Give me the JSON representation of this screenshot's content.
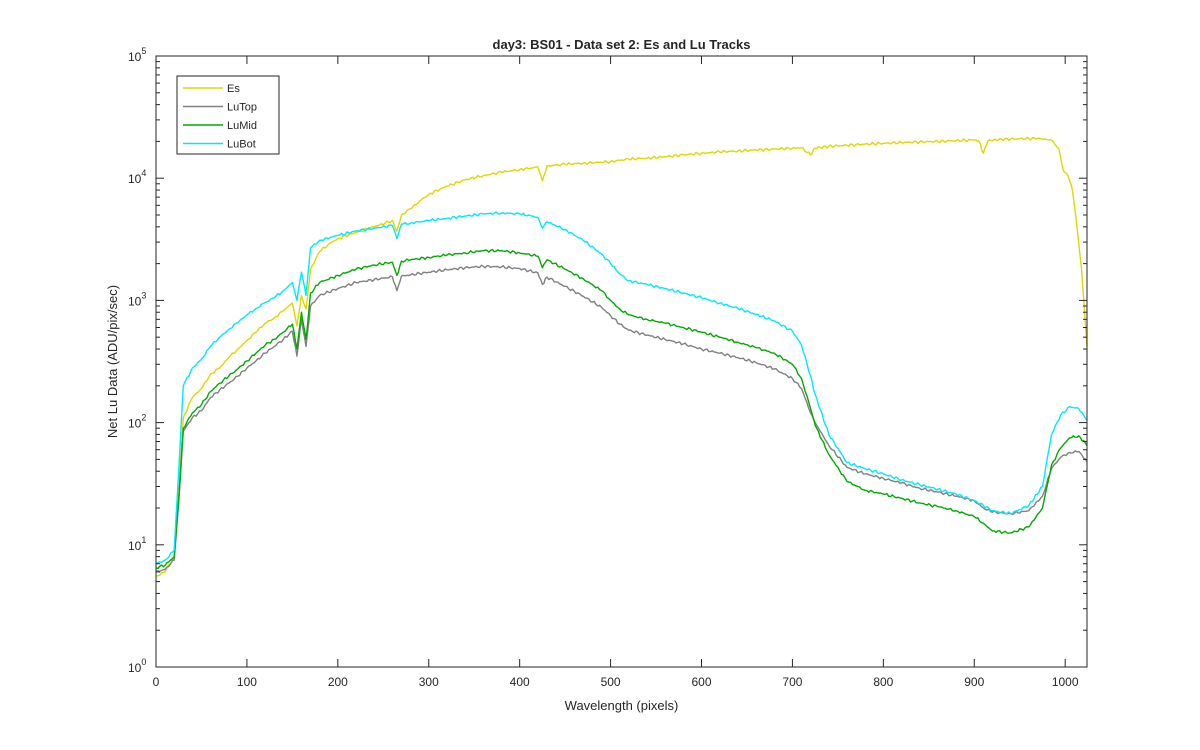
{
  "chart_data": {
    "type": "line",
    "title": "day3: BS01 - Data set 2: Es and Lu Tracks",
    "xlabel": "Wavelength (pixels)",
    "ylabel": "Net Lu Data (ADU/pix/sec)",
    "xlim": [
      0,
      1024
    ],
    "ylim": [
      1,
      100000
    ],
    "yscale": "log",
    "grid": false,
    "legend_position": "top-left",
    "x_ticks": [
      0,
      100,
      200,
      300,
      400,
      500,
      600,
      700,
      800,
      900,
      1000
    ],
    "y_ticks": [
      {
        "value": 1,
        "base": "10",
        "exp": "0"
      },
      {
        "value": 10,
        "base": "10",
        "exp": "1"
      },
      {
        "value": 100,
        "base": "10",
        "exp": "2"
      },
      {
        "value": 1000,
        "base": "10",
        "exp": "3"
      },
      {
        "value": 10000,
        "base": "10",
        "exp": "4"
      },
      {
        "value": 100000,
        "base": "10",
        "exp": "5"
      }
    ],
    "series": [
      {
        "name": "Es",
        "color": "#e0d600",
        "points": [
          [
            0,
            5.5
          ],
          [
            10,
            6
          ],
          [
            20,
            8
          ],
          [
            25,
            25
          ],
          [
            30,
            110
          ],
          [
            40,
            160
          ],
          [
            50,
            190
          ],
          [
            60,
            250
          ],
          [
            70,
            280
          ],
          [
            80,
            340
          ],
          [
            90,
            400
          ],
          [
            100,
            470
          ],
          [
            110,
            550
          ],
          [
            120,
            650
          ],
          [
            130,
            720
          ],
          [
            140,
            820
          ],
          [
            150,
            950
          ],
          [
            155,
            620
          ],
          [
            160,
            1100
          ],
          [
            165,
            850
          ],
          [
            170,
            1800
          ],
          [
            180,
            2500
          ],
          [
            190,
            2900
          ],
          [
            200,
            3200
          ],
          [
            220,
            3600
          ],
          [
            240,
            4000
          ],
          [
            260,
            4500
          ],
          [
            265,
            3700
          ],
          [
            270,
            5000
          ],
          [
            280,
            5600
          ],
          [
            290,
            6500
          ],
          [
            300,
            7400
          ],
          [
            320,
            8600
          ],
          [
            340,
            9700
          ],
          [
            360,
            10500
          ],
          [
            380,
            11200
          ],
          [
            400,
            11800
          ],
          [
            420,
            12300
          ],
          [
            425,
            9500
          ],
          [
            430,
            12600
          ],
          [
            450,
            13000
          ],
          [
            470,
            13300
          ],
          [
            490,
            13500
          ],
          [
            500,
            13700
          ],
          [
            510,
            14000
          ],
          [
            520,
            14300
          ],
          [
            540,
            14600
          ],
          [
            560,
            15000
          ],
          [
            580,
            15500
          ],
          [
            600,
            16000
          ],
          [
            620,
            16400
          ],
          [
            640,
            16700
          ],
          [
            660,
            17000
          ],
          [
            680,
            17300
          ],
          [
            700,
            17600
          ],
          [
            710,
            17800
          ],
          [
            720,
            15500
          ],
          [
            725,
            17600
          ],
          [
            740,
            18200
          ],
          [
            760,
            18600
          ],
          [
            780,
            19000
          ],
          [
            800,
            19300
          ],
          [
            820,
            19600
          ],
          [
            840,
            19800
          ],
          [
            860,
            20000
          ],
          [
            880,
            20300
          ],
          [
            900,
            20600
          ],
          [
            905,
            20200
          ],
          [
            910,
            16000
          ],
          [
            915,
            20300
          ],
          [
            930,
            20800
          ],
          [
            950,
            21000
          ],
          [
            970,
            21200
          ],
          [
            985,
            20500
          ],
          [
            993,
            17500
          ],
          [
            998,
            11500
          ],
          [
            1003,
            10500
          ],
          [
            1008,
            8000
          ],
          [
            1013,
            4000
          ],
          [
            1018,
            1800
          ],
          [
            1024,
            420
          ]
        ]
      },
      {
        "name": "LuTop",
        "color": "#808080",
        "points": [
          [
            0,
            6
          ],
          [
            10,
            6.3
          ],
          [
            20,
            7.5
          ],
          [
            25,
            22
          ],
          [
            30,
            85
          ],
          [
            40,
            110
          ],
          [
            50,
            125
          ],
          [
            60,
            160
          ],
          [
            70,
            185
          ],
          [
            80,
            210
          ],
          [
            90,
            240
          ],
          [
            100,
            280
          ],
          [
            110,
            320
          ],
          [
            120,
            370
          ],
          [
            130,
            420
          ],
          [
            140,
            480
          ],
          [
            150,
            560
          ],
          [
            155,
            350
          ],
          [
            160,
            700
          ],
          [
            165,
            420
          ],
          [
            170,
            900
          ],
          [
            180,
            1100
          ],
          [
            200,
            1250
          ],
          [
            220,
            1400
          ],
          [
            240,
            1480
          ],
          [
            260,
            1560
          ],
          [
            265,
            1200
          ],
          [
            270,
            1580
          ],
          [
            280,
            1620
          ],
          [
            300,
            1700
          ],
          [
            320,
            1780
          ],
          [
            340,
            1850
          ],
          [
            360,
            1900
          ],
          [
            380,
            1880
          ],
          [
            400,
            1820
          ],
          [
            420,
            1680
          ],
          [
            425,
            1350
          ],
          [
            430,
            1550
          ],
          [
            450,
            1300
          ],
          [
            470,
            1080
          ],
          [
            490,
            880
          ],
          [
            500,
            750
          ],
          [
            510,
            640
          ],
          [
            520,
            570
          ],
          [
            540,
            520
          ],
          [
            560,
            480
          ],
          [
            580,
            440
          ],
          [
            600,
            400
          ],
          [
            620,
            370
          ],
          [
            640,
            340
          ],
          [
            660,
            310
          ],
          [
            680,
            275
          ],
          [
            700,
            230
          ],
          [
            710,
            190
          ],
          [
            720,
            120
          ],
          [
            725,
            100
          ],
          [
            740,
            65
          ],
          [
            760,
            43
          ],
          [
            780,
            38
          ],
          [
            800,
            35
          ],
          [
            820,
            32
          ],
          [
            840,
            29
          ],
          [
            860,
            27
          ],
          [
            880,
            25
          ],
          [
            900,
            23
          ],
          [
            910,
            20
          ],
          [
            920,
            18.5
          ],
          [
            940,
            18
          ],
          [
            960,
            19
          ],
          [
            975,
            25
          ],
          [
            985,
            42
          ],
          [
            995,
            52
          ],
          [
            1005,
            57
          ],
          [
            1015,
            58
          ],
          [
            1024,
            48
          ]
        ]
      },
      {
        "name": "LuMid",
        "color": "#00aa00",
        "points": [
          [
            0,
            6.5
          ],
          [
            10,
            6.8
          ],
          [
            20,
            8
          ],
          [
            25,
            24
          ],
          [
            30,
            90
          ],
          [
            40,
            120
          ],
          [
            50,
            140
          ],
          [
            60,
            180
          ],
          [
            70,
            210
          ],
          [
            80,
            240
          ],
          [
            90,
            275
          ],
          [
            100,
            320
          ],
          [
            110,
            370
          ],
          [
            120,
            430
          ],
          [
            130,
            480
          ],
          [
            140,
            550
          ],
          [
            150,
            640
          ],
          [
            155,
            400
          ],
          [
            160,
            800
          ],
          [
            165,
            480
          ],
          [
            170,
            1150
          ],
          [
            180,
            1400
          ],
          [
            200,
            1600
          ],
          [
            220,
            1800
          ],
          [
            240,
            1950
          ],
          [
            260,
            2050
          ],
          [
            265,
            1600
          ],
          [
            270,
            2100
          ],
          [
            280,
            2150
          ],
          [
            300,
            2250
          ],
          [
            320,
            2350
          ],
          [
            340,
            2450
          ],
          [
            360,
            2550
          ],
          [
            380,
            2550
          ],
          [
            400,
            2450
          ],
          [
            420,
            2300
          ],
          [
            425,
            1850
          ],
          [
            430,
            2150
          ],
          [
            450,
            1800
          ],
          [
            470,
            1500
          ],
          [
            490,
            1200
          ],
          [
            500,
            1000
          ],
          [
            510,
            850
          ],
          [
            520,
            760
          ],
          [
            540,
            700
          ],
          [
            560,
            650
          ],
          [
            580,
            600
          ],
          [
            600,
            550
          ],
          [
            620,
            500
          ],
          [
            640,
            455
          ],
          [
            660,
            410
          ],
          [
            680,
            370
          ],
          [
            700,
            300
          ],
          [
            710,
            230
          ],
          [
            720,
            130
          ],
          [
            725,
            95
          ],
          [
            740,
            55
          ],
          [
            760,
            33
          ],
          [
            780,
            28
          ],
          [
            800,
            26
          ],
          [
            820,
            24
          ],
          [
            840,
            22
          ],
          [
            860,
            20.5
          ],
          [
            880,
            19
          ],
          [
            900,
            17
          ],
          [
            910,
            15
          ],
          [
            920,
            13
          ],
          [
            940,
            12.5
          ],
          [
            960,
            14
          ],
          [
            975,
            20
          ],
          [
            985,
            45
          ],
          [
            995,
            62
          ],
          [
            1005,
            75
          ],
          [
            1015,
            78
          ],
          [
            1024,
            65
          ]
        ]
      },
      {
        "name": "LuBot",
        "color": "#00e8ff",
        "points": [
          [
            0,
            7
          ],
          [
            10,
            7.5
          ],
          [
            20,
            9
          ],
          [
            25,
            40
          ],
          [
            30,
            200
          ],
          [
            40,
            280
          ],
          [
            50,
            330
          ],
          [
            60,
            420
          ],
          [
            70,
            500
          ],
          [
            80,
            580
          ],
          [
            90,
            660
          ],
          [
            100,
            760
          ],
          [
            110,
            860
          ],
          [
            120,
            960
          ],
          [
            130,
            1050
          ],
          [
            140,
            1200
          ],
          [
            150,
            1400
          ],
          [
            155,
            1000
          ],
          [
            160,
            1700
          ],
          [
            165,
            1100
          ],
          [
            170,
            2700
          ],
          [
            180,
            3100
          ],
          [
            200,
            3400
          ],
          [
            220,
            3700
          ],
          [
            240,
            3900
          ],
          [
            260,
            4100
          ],
          [
            265,
            3200
          ],
          [
            270,
            4200
          ],
          [
            280,
            4300
          ],
          [
            300,
            4500
          ],
          [
            320,
            4700
          ],
          [
            340,
            4900
          ],
          [
            360,
            5100
          ],
          [
            380,
            5200
          ],
          [
            400,
            5100
          ],
          [
            420,
            4800
          ],
          [
            425,
            3900
          ],
          [
            430,
            4400
          ],
          [
            450,
            3800
          ],
          [
            470,
            3100
          ],
          [
            490,
            2400
          ],
          [
            500,
            2000
          ],
          [
            510,
            1650
          ],
          [
            520,
            1450
          ],
          [
            540,
            1350
          ],
          [
            560,
            1250
          ],
          [
            580,
            1150
          ],
          [
            600,
            1050
          ],
          [
            620,
            950
          ],
          [
            640,
            860
          ],
          [
            660,
            770
          ],
          [
            680,
            680
          ],
          [
            700,
            560
          ],
          [
            710,
            430
          ],
          [
            720,
            240
          ],
          [
            725,
            170
          ],
          [
            740,
            80
          ],
          [
            760,
            47
          ],
          [
            780,
            42
          ],
          [
            800,
            38
          ],
          [
            820,
            34
          ],
          [
            840,
            31
          ],
          [
            860,
            28.5
          ],
          [
            880,
            26
          ],
          [
            900,
            23
          ],
          [
            910,
            21
          ],
          [
            920,
            19
          ],
          [
            940,
            18
          ],
          [
            960,
            21
          ],
          [
            975,
            30
          ],
          [
            985,
            80
          ],
          [
            995,
            115
          ],
          [
            1005,
            135
          ],
          [
            1015,
            130
          ],
          [
            1024,
            105
          ]
        ]
      }
    ]
  }
}
